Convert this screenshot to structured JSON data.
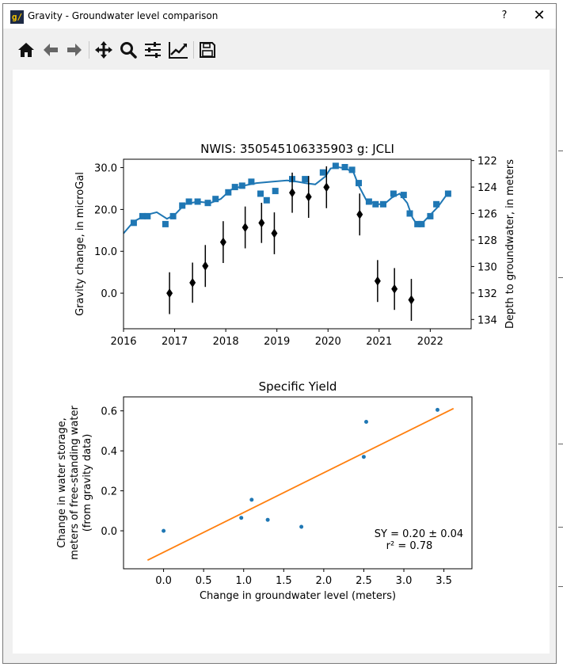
{
  "window": {
    "title": "Gravity - Groundwater level comparison",
    "help_label": "?",
    "close_label": "✕"
  },
  "toolbar": {
    "buttons": [
      "home-icon",
      "back-icon",
      "forward-icon",
      "pan-icon",
      "zoom-icon",
      "configure-subplots-icon",
      "edit-axis-icon",
      "save-icon"
    ]
  },
  "chart_data": [
    {
      "type": "scatter",
      "title": "NWIS: 350545106335903  g: JCLI",
      "ylabel": "Gravity change, in microGal",
      "y2label": "Depth to groundwater, in meters",
      "xlim": [
        2016,
        2022.8
      ],
      "ylim": [
        -8.5,
        32
      ],
      "y2lim": [
        134.7,
        121.9
      ],
      "xticks": [
        "2016",
        "2017",
        "2018",
        "2019",
        "2020",
        "2021",
        "2022"
      ],
      "yticks": [
        "0.0",
        "10.0",
        "20.0",
        "30.0"
      ],
      "y2ticks": [
        "122",
        "124",
        "126",
        "128",
        "130",
        "132",
        "134"
      ],
      "gravity_series": {
        "name": "gravity",
        "color": "#000000",
        "marker": "diamond",
        "points": [
          {
            "x": 2016.9,
            "y": 0.0,
            "err": 5.0
          },
          {
            "x": 2017.35,
            "y": 2.5,
            "err": 4.8
          },
          {
            "x": 2017.6,
            "y": 6.5,
            "err": 5.0
          },
          {
            "x": 2017.95,
            "y": 12.2,
            "err": 5.0
          },
          {
            "x": 2018.38,
            "y": 15.7,
            "err": 5.0
          },
          {
            "x": 2018.7,
            "y": 16.8,
            "err": 4.8
          },
          {
            "x": 2018.95,
            "y": 14.3,
            "err": 5.0
          },
          {
            "x": 2019.3,
            "y": 24.0,
            "err": 4.8
          },
          {
            "x": 2019.62,
            "y": 23.0,
            "err": 5.0
          },
          {
            "x": 2019.97,
            "y": 25.3,
            "err": 5.0
          },
          {
            "x": 2020.62,
            "y": 18.8,
            "err": 5.0
          },
          {
            "x": 2020.97,
            "y": 2.9,
            "err": 5.0
          },
          {
            "x": 2021.3,
            "y": 1.0,
            "err": 5.0
          },
          {
            "x": 2021.63,
            "y": -1.6,
            "err": 5.0
          }
        ]
      },
      "groundwater_series": {
        "name": "groundwater",
        "color": "#1f77b4",
        "marker": "square",
        "line": [
          [
            2016.0,
            127.5
          ],
          [
            2016.2,
            126.6
          ],
          [
            2016.45,
            126.1
          ],
          [
            2016.65,
            125.9
          ],
          [
            2016.85,
            126.4
          ],
          [
            2017.0,
            126.1
          ],
          [
            2017.2,
            125.3
          ],
          [
            2017.45,
            125.1
          ],
          [
            2017.7,
            125.2
          ],
          [
            2017.9,
            124.9
          ],
          [
            2018.1,
            124.2
          ],
          [
            2018.35,
            123.9
          ],
          [
            2018.6,
            123.7
          ],
          [
            2018.9,
            123.6
          ],
          [
            2019.2,
            123.5
          ],
          [
            2019.4,
            123.6
          ],
          [
            2019.55,
            123.7
          ],
          [
            2019.75,
            123.8
          ],
          [
            2019.95,
            123.2
          ],
          [
            2020.05,
            122.6
          ],
          [
            2020.2,
            122.5
          ],
          [
            2020.35,
            122.6
          ],
          [
            2020.5,
            122.9
          ],
          [
            2020.6,
            123.9
          ],
          [
            2020.75,
            125.0
          ],
          [
            2020.95,
            125.3
          ],
          [
            2021.1,
            125.3
          ],
          [
            2021.25,
            124.8
          ],
          [
            2021.4,
            124.5
          ],
          [
            2021.55,
            125.2
          ],
          [
            2021.65,
            126.3
          ],
          [
            2021.75,
            126.9
          ],
          [
            2021.85,
            126.7
          ],
          [
            2022.0,
            126.1
          ],
          [
            2022.15,
            125.5
          ],
          [
            2022.3,
            124.7
          ],
          [
            2022.4,
            124.5
          ]
        ],
        "points": [
          [
            2016.2,
            126.7
          ],
          [
            2016.37,
            126.2
          ],
          [
            2016.47,
            126.2
          ],
          [
            2016.82,
            126.8
          ],
          [
            2016.97,
            126.2
          ],
          [
            2017.15,
            125.4
          ],
          [
            2017.28,
            125.1
          ],
          [
            2017.45,
            125.1
          ],
          [
            2017.65,
            125.2
          ],
          [
            2017.8,
            124.9
          ],
          [
            2018.05,
            124.4
          ],
          [
            2018.18,
            124.0
          ],
          [
            2018.32,
            123.9
          ],
          [
            2018.5,
            123.6
          ],
          [
            2018.68,
            124.5
          ],
          [
            2018.8,
            125.0
          ],
          [
            2018.97,
            124.3
          ],
          [
            2019.3,
            123.4
          ],
          [
            2019.55,
            123.4
          ],
          [
            2019.9,
            122.9
          ],
          [
            2020.15,
            122.4
          ],
          [
            2020.33,
            122.5
          ],
          [
            2020.47,
            122.7
          ],
          [
            2020.6,
            123.7
          ],
          [
            2020.8,
            125.1
          ],
          [
            2020.93,
            125.3
          ],
          [
            2021.08,
            125.3
          ],
          [
            2021.28,
            124.5
          ],
          [
            2021.48,
            124.6
          ],
          [
            2021.6,
            126.0
          ],
          [
            2021.75,
            126.8
          ],
          [
            2021.83,
            126.8
          ],
          [
            2022.0,
            126.2
          ],
          [
            2022.12,
            125.3
          ],
          [
            2022.35,
            124.5
          ]
        ]
      }
    },
    {
      "type": "scatter",
      "title": "Specific Yield",
      "xlabel": "Change in groundwater level (meters)",
      "ylabel_lines": [
        "Change in water storage,",
        "meters of free-standing water",
        "(from gravity data)"
      ],
      "xlim": [
        -0.5,
        3.85
      ],
      "ylim": [
        -0.19,
        0.67
      ],
      "xticks": [
        "0.0",
        "0.5",
        "1.0",
        "1.5",
        "2.0",
        "2.5",
        "3.0",
        "3.5"
      ],
      "yticks": [
        "0.0",
        "0.2",
        "0.4",
        "0.6"
      ],
      "points": [
        [
          0.0,
          0.0
        ],
        [
          0.97,
          0.065
        ],
        [
          1.1,
          0.155
        ],
        [
          1.3,
          0.055
        ],
        [
          1.72,
          0.02
        ],
        [
          2.5,
          0.37
        ],
        [
          2.53,
          0.545
        ],
        [
          3.42,
          0.605
        ]
      ],
      "fit_line": {
        "x": [
          -0.2,
          3.62
        ],
        "y": [
          -0.147,
          0.612
        ],
        "color": "#ff7f0e"
      },
      "annotation_lines": [
        "SY = 0.20 ± 0.04",
        "r² = 0.78"
      ]
    }
  ]
}
